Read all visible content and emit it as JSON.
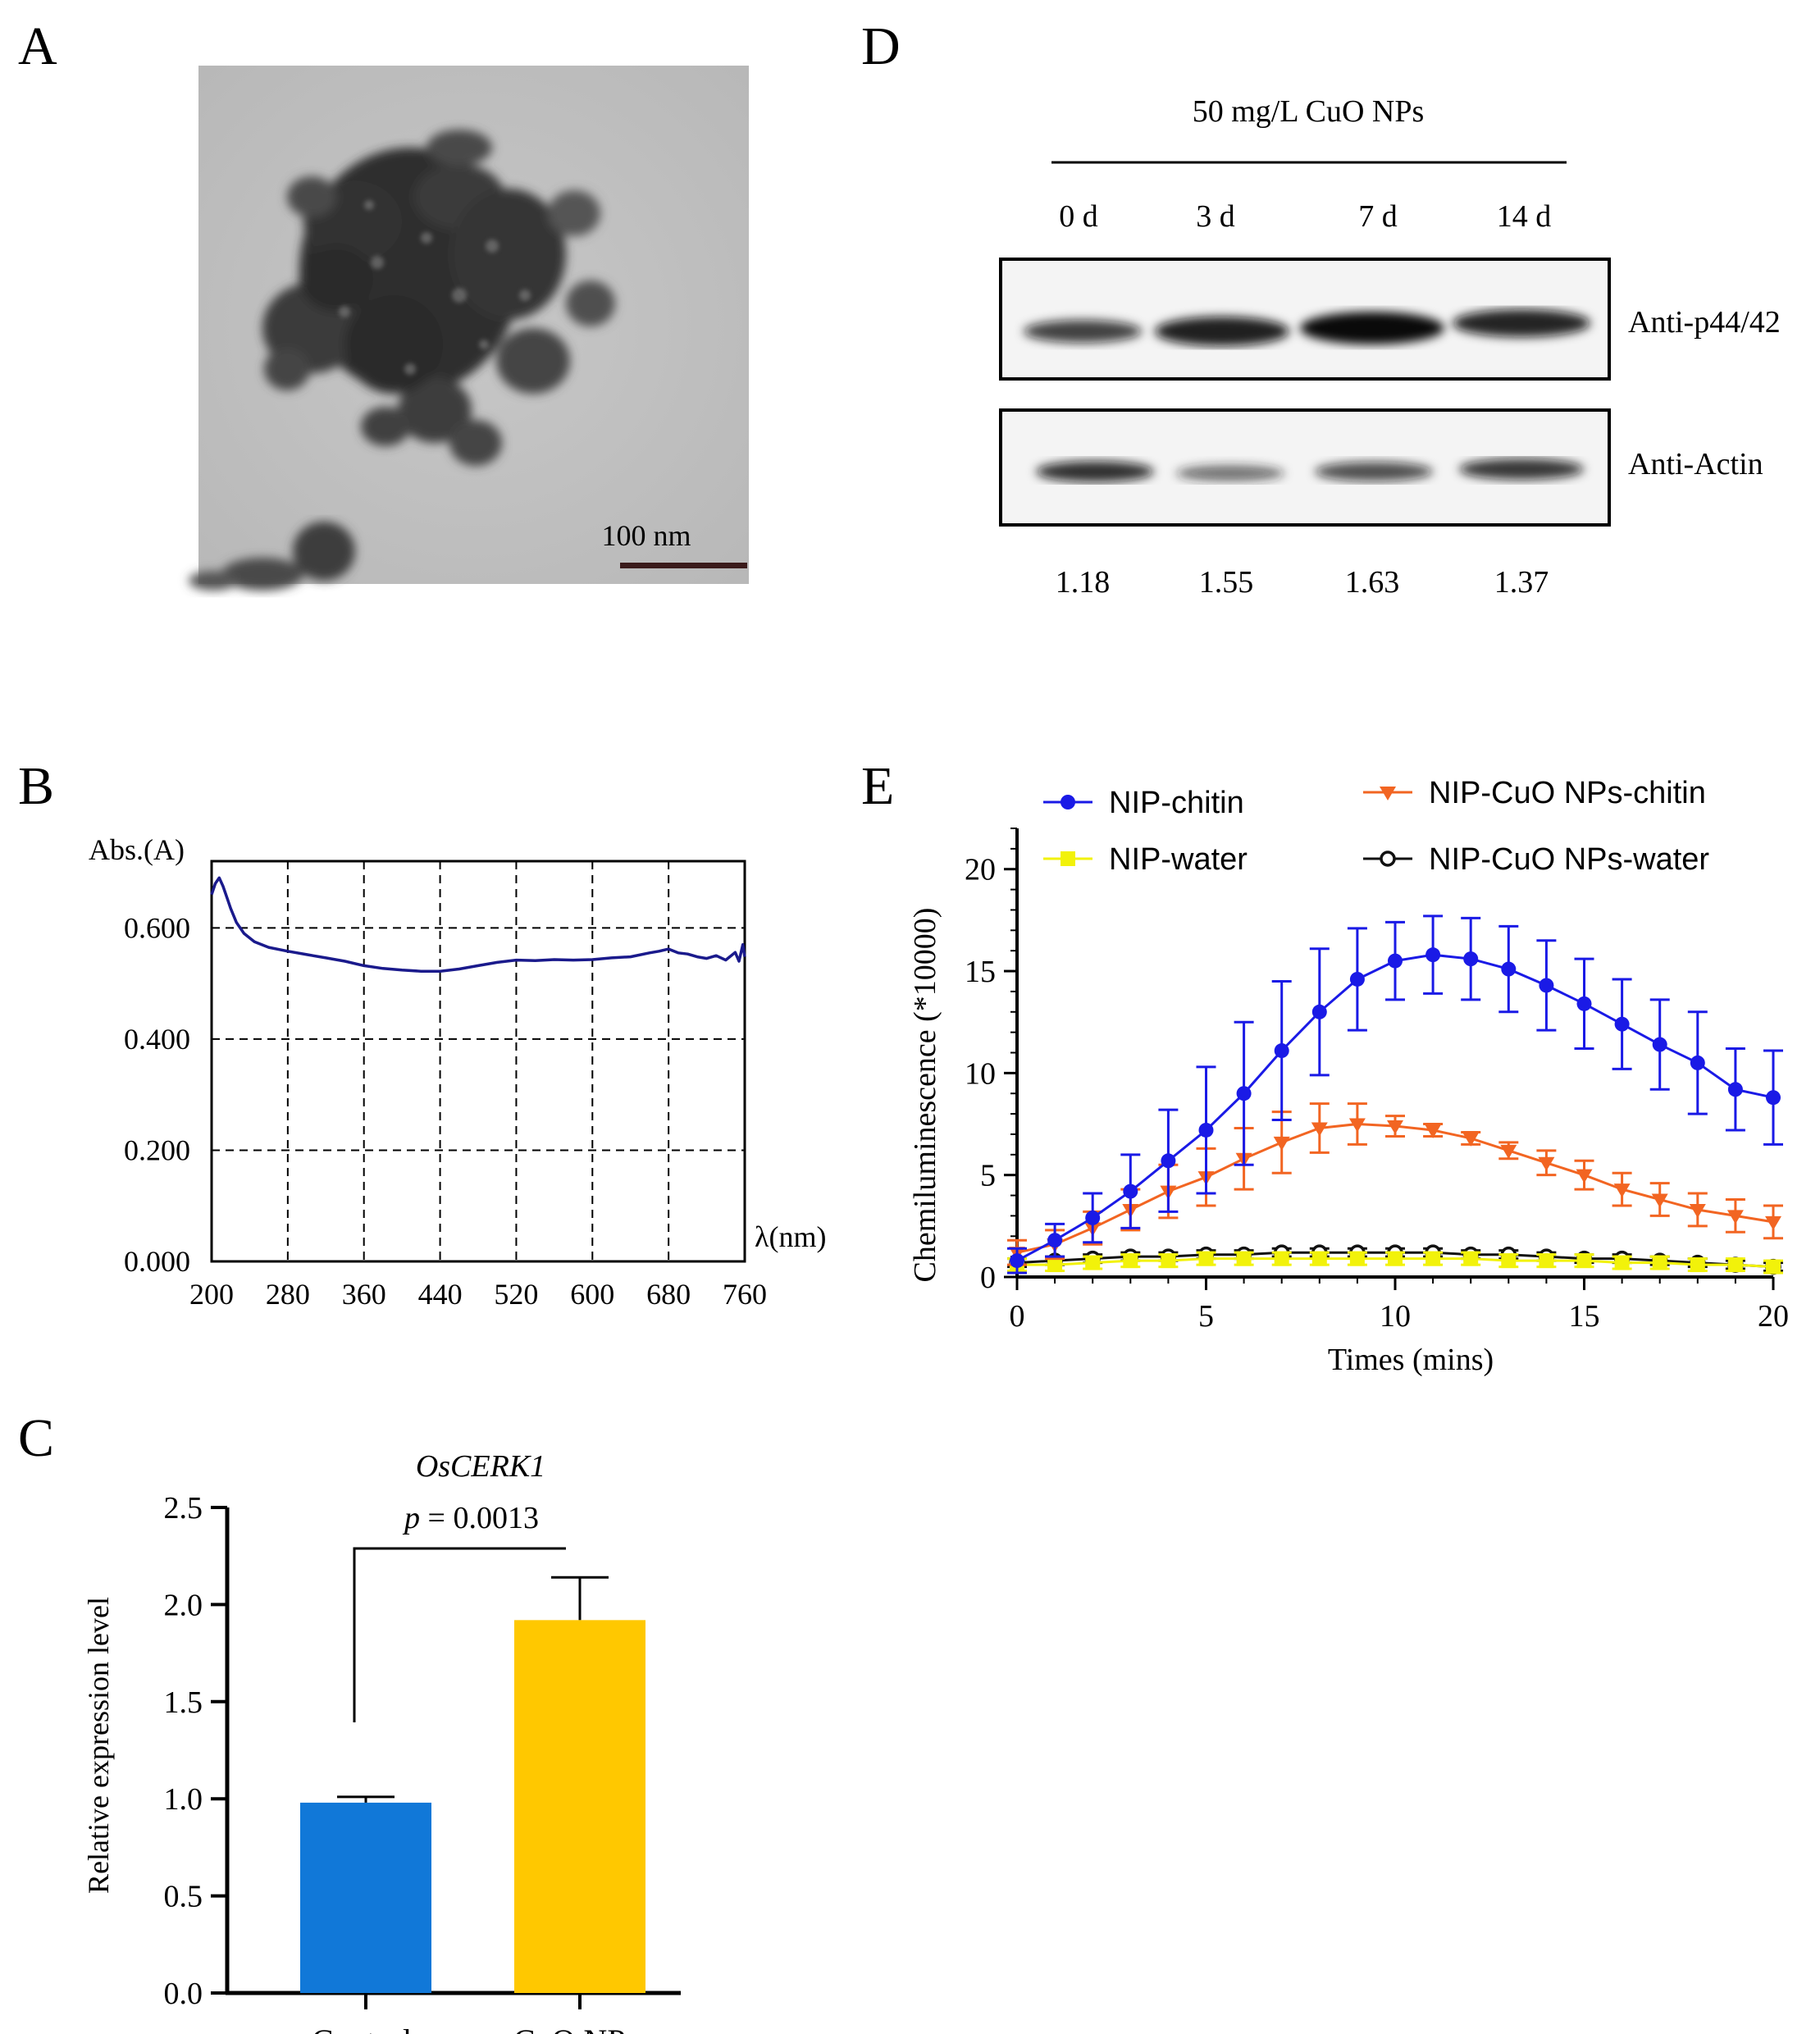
{
  "panel_labels": {
    "a": "A",
    "b": "B",
    "c": "C",
    "d": "D",
    "e": "E"
  },
  "panel_a": {
    "scale_bar_label": "100 nm"
  },
  "chart_data": [
    {
      "panel": "B",
      "type": "line",
      "ylabel": "Abs.(A)",
      "xlabel": "λ(nm)",
      "xlim": [
        200,
        760
      ],
      "ylim": [
        0,
        0.72
      ],
      "xticks": [
        200,
        280,
        360,
        440,
        520,
        600,
        680,
        760
      ],
      "yticks": [
        0.0,
        0.2,
        0.4,
        0.6
      ],
      "ytick_labels": [
        "0.000",
        "0.200",
        "0.400",
        "0.600"
      ],
      "grid": "dashed",
      "color": "#1a1a8c",
      "x": [
        200,
        204,
        208,
        212,
        216,
        220,
        226,
        234,
        245,
        260,
        280,
        300,
        320,
        340,
        360,
        380,
        400,
        420,
        440,
        460,
        480,
        500,
        520,
        540,
        560,
        580,
        600,
        620,
        640,
        660,
        670,
        680,
        690,
        700,
        710,
        720,
        730,
        740,
        750,
        754,
        758,
        760
      ],
      "y": [
        0.66,
        0.68,
        0.69,
        0.675,
        0.655,
        0.635,
        0.61,
        0.59,
        0.575,
        0.565,
        0.558,
        0.552,
        0.546,
        0.54,
        0.532,
        0.527,
        0.524,
        0.522,
        0.522,
        0.526,
        0.532,
        0.538,
        0.542,
        0.541,
        0.543,
        0.542,
        0.543,
        0.546,
        0.548,
        0.555,
        0.558,
        0.562,
        0.555,
        0.553,
        0.548,
        0.545,
        0.55,
        0.542,
        0.556,
        0.54,
        0.57,
        0.548
      ]
    },
    {
      "panel": "C",
      "type": "bar",
      "title": "OsCERK1",
      "ylabel": "Relative expression level",
      "categories": [
        "Control",
        "CuO NPs"
      ],
      "values": [
        0.98,
        1.92
      ],
      "errors": [
        0.03,
        0.22
      ],
      "colors": [
        "#1178d8",
        "#ffc800"
      ],
      "ylim": [
        0,
        2.5
      ],
      "yticks": [
        0.0,
        0.5,
        1.0,
        1.5,
        2.0,
        2.5
      ],
      "significance": {
        "p_label": "p",
        "value_label": " = 0.0013"
      }
    },
    {
      "panel": "E",
      "type": "line",
      "xlabel": "Times (mins)",
      "ylabel": "Chemiluminescence (*10000)",
      "xlim": [
        0,
        20
      ],
      "ylim": [
        0,
        22
      ],
      "xticks": [
        0,
        5,
        10,
        15,
        20
      ],
      "yticks": [
        0,
        5,
        10,
        15,
        20
      ],
      "x": [
        0,
        1,
        2,
        3,
        4,
        5,
        6,
        7,
        8,
        9,
        10,
        11,
        12,
        13,
        14,
        15,
        16,
        17,
        18,
        19,
        20
      ],
      "series": [
        {
          "name": "NIP-chitin",
          "color": "#1a1ae6",
          "marker": "circle",
          "values": [
            0.8,
            1.8,
            2.9,
            4.2,
            5.7,
            7.2,
            9.0,
            11.1,
            13.0,
            14.6,
            15.5,
            15.8,
            15.6,
            15.1,
            14.3,
            13.4,
            12.4,
            11.4,
            10.5,
            9.2,
            8.8
          ],
          "errors": [
            0.6,
            0.8,
            1.2,
            1.8,
            2.5,
            3.1,
            3.5,
            3.4,
            3.1,
            2.5,
            1.9,
            1.9,
            2.0,
            2.1,
            2.2,
            2.2,
            2.2,
            2.2,
            2.5,
            2.0,
            2.3
          ]
        },
        {
          "name": "NIP-CuO NPs-chitin",
          "color": "#f26522",
          "marker": "triangle-down",
          "values": [
            1.2,
            1.6,
            2.4,
            3.3,
            4.2,
            4.9,
            5.8,
            6.6,
            7.3,
            7.5,
            7.4,
            7.2,
            6.8,
            6.2,
            5.6,
            5.0,
            4.3,
            3.8,
            3.3,
            3.0,
            2.7
          ],
          "errors": [
            0.6,
            0.7,
            0.8,
            1.0,
            1.3,
            1.4,
            1.5,
            1.5,
            1.2,
            1.0,
            0.5,
            0.3,
            0.3,
            0.4,
            0.6,
            0.7,
            0.8,
            0.8,
            0.8,
            0.8,
            0.8
          ]
        },
        {
          "name": "NIP-water",
          "color": "#f2f20a",
          "marker": "square",
          "values": [
            0.6,
            0.6,
            0.7,
            0.8,
            0.8,
            0.9,
            0.9,
            0.9,
            0.9,
            0.9,
            0.9,
            0.9,
            0.9,
            0.8,
            0.8,
            0.8,
            0.7,
            0.7,
            0.6,
            0.6,
            0.5
          ],
          "errors": [
            0.3,
            0.3,
            0.3,
            0.3,
            0.3,
            0.3,
            0.3,
            0.3,
            0.3,
            0.3,
            0.3,
            0.3,
            0.3,
            0.3,
            0.3,
            0.3,
            0.3,
            0.3,
            0.3,
            0.3,
            0.3
          ]
        },
        {
          "name": "NIP-CuO NPs-water",
          "color": "#111111",
          "marker": "circle-open",
          "values": [
            0.7,
            0.8,
            0.9,
            1.0,
            1.0,
            1.1,
            1.1,
            1.2,
            1.2,
            1.2,
            1.2,
            1.2,
            1.1,
            1.1,
            1.0,
            0.9,
            0.9,
            0.8,
            0.7,
            0.6,
            0.5
          ],
          "errors": [
            0.2,
            0.2,
            0.2,
            0.2,
            0.2,
            0.2,
            0.2,
            0.2,
            0.2,
            0.2,
            0.2,
            0.2,
            0.2,
            0.2,
            0.2,
            0.2,
            0.2,
            0.2,
            0.2,
            0.2,
            0.2
          ]
        }
      ]
    }
  ],
  "panel_d": {
    "treatment_label": "50 mg/L CuO NPs",
    "lanes": [
      "0 d",
      "3 d",
      "7 d",
      "14 d"
    ],
    "row_labels": [
      "Anti-p44/42",
      "Anti-Actin"
    ],
    "ratios": [
      "1.18",
      "1.55",
      "1.63",
      "1.37"
    ],
    "p44_intensity": [
      0.62,
      0.85,
      0.95,
      0.78
    ],
    "actin_intensity": [
      0.8,
      0.45,
      0.55,
      0.72
    ]
  }
}
